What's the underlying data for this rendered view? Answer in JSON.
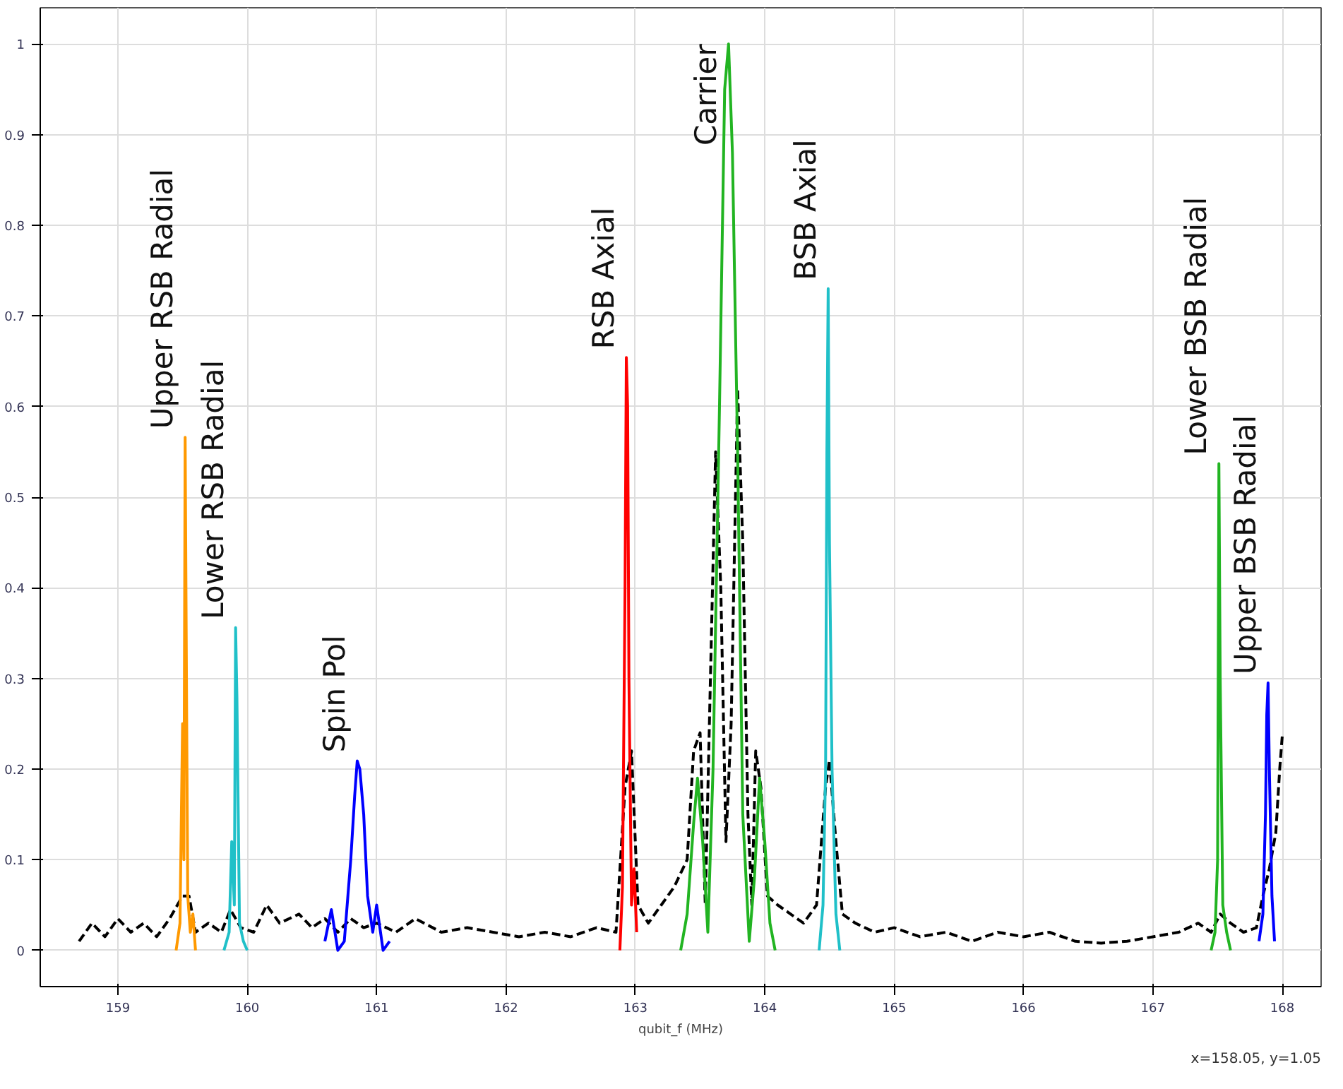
{
  "chart_data": {
    "type": "line",
    "xlabel": "qubit_f (MHz)",
    "xlim": [
      158.4,
      168.3
    ],
    "ylim": [
      -0.04,
      1.04
    ],
    "xticks": [
      159,
      160,
      161,
      162,
      163,
      164,
      165,
      166,
      167,
      168
    ],
    "yticks": [
      0,
      0.1,
      0.2,
      0.3,
      0.4,
      0.5,
      0.6,
      0.7,
      0.8,
      0.9,
      1
    ],
    "grid": true,
    "series": [
      {
        "color": "#000000",
        "line_style": "dashed",
        "x": [
          158.7,
          158.8,
          158.9,
          159.0,
          159.1,
          159.2,
          159.3,
          159.4,
          159.5,
          159.55,
          159.6,
          159.7,
          159.8,
          159.87,
          159.95,
          160.05,
          160.15,
          160.25,
          160.4,
          160.5,
          160.6,
          160.7,
          160.8,
          160.9,
          161.0,
          161.15,
          161.3,
          161.5,
          161.7,
          161.9,
          162.1,
          162.3,
          162.5,
          162.7,
          162.85,
          162.92,
          162.97,
          163.02,
          163.1,
          163.2,
          163.3,
          163.4,
          163.45,
          163.5,
          163.54,
          163.58,
          163.62,
          163.66,
          163.7,
          163.74,
          163.79,
          163.83,
          163.87,
          163.9,
          163.93,
          163.97,
          164.02,
          164.1,
          164.2,
          164.3,
          164.4,
          164.47,
          164.5,
          164.55,
          164.6,
          164.7,
          164.85,
          165.0,
          165.2,
          165.4,
          165.6,
          165.8,
          166.0,
          166.2,
          166.4,
          166.6,
          166.8,
          167.0,
          167.2,
          167.35,
          167.45,
          167.52,
          167.6,
          167.7,
          167.8,
          167.85,
          167.9,
          167.95,
          167.98,
          168.0
        ],
        "values": [
          0.01,
          0.03,
          0.015,
          0.035,
          0.02,
          0.03,
          0.015,
          0.035,
          0.06,
          0.06,
          0.02,
          0.03,
          0.02,
          0.045,
          0.025,
          0.02,
          0.05,
          0.03,
          0.04,
          0.025,
          0.035,
          0.02,
          0.035,
          0.025,
          0.03,
          0.02,
          0.035,
          0.02,
          0.025,
          0.02,
          0.015,
          0.02,
          0.015,
          0.025,
          0.02,
          0.18,
          0.22,
          0.05,
          0.03,
          0.05,
          0.07,
          0.1,
          0.22,
          0.24,
          0.05,
          0.3,
          0.55,
          0.4,
          0.12,
          0.25,
          0.62,
          0.45,
          0.15,
          0.05,
          0.22,
          0.18,
          0.06,
          0.05,
          0.04,
          0.03,
          0.05,
          0.18,
          0.21,
          0.12,
          0.04,
          0.03,
          0.02,
          0.025,
          0.015,
          0.02,
          0.01,
          0.02,
          0.015,
          0.02,
          0.01,
          0.008,
          0.01,
          0.015,
          0.02,
          0.03,
          0.02,
          0.04,
          0.03,
          0.02,
          0.025,
          0.06,
          0.09,
          0.13,
          0.2,
          0.237
        ]
      },
      {
        "color": "#ff9900",
        "x": [
          159.45,
          159.48,
          159.5,
          159.51,
          159.52,
          159.53,
          159.54,
          159.56,
          159.58,
          159.6
        ],
        "values": [
          0.0,
          0.03,
          0.25,
          0.1,
          0.566,
          0.3,
          0.06,
          0.02,
          0.04,
          0.0
        ]
      },
      {
        "color": "#20c0c8",
        "x": [
          159.82,
          159.86,
          159.88,
          159.9,
          159.91,
          159.92,
          159.94,
          159.97,
          160.0
        ],
        "values": [
          0.0,
          0.02,
          0.12,
          0.05,
          0.356,
          0.28,
          0.03,
          0.01,
          0.0
        ]
      },
      {
        "color": "#0000ff",
        "x": [
          160.6,
          160.65,
          160.7,
          160.75,
          160.8,
          160.83,
          160.85,
          160.87,
          160.9,
          160.93,
          160.97,
          161.0,
          161.05,
          161.1
        ],
        "values": [
          0.01,
          0.045,
          0.0,
          0.01,
          0.1,
          0.17,
          0.209,
          0.2,
          0.15,
          0.06,
          0.02,
          0.05,
          0.0,
          0.01
        ]
      },
      {
        "color": "#ff0000",
        "x": [
          162.88,
          162.9,
          162.92,
          162.93,
          162.94,
          162.95,
          162.97,
          162.99,
          163.01
        ],
        "values": [
          0.0,
          0.07,
          0.4,
          0.654,
          0.6,
          0.3,
          0.05,
          0.09,
          0.02
        ]
      },
      {
        "color": "#22b422",
        "x": [
          163.35,
          163.4,
          163.45,
          163.48,
          163.52,
          163.56,
          163.6,
          163.65,
          163.69,
          163.72,
          163.75,
          163.79,
          163.83,
          163.88,
          163.92,
          163.96,
          164.0,
          164.04,
          164.08
        ],
        "values": [
          0.0,
          0.04,
          0.14,
          0.19,
          0.12,
          0.02,
          0.2,
          0.6,
          0.95,
          1.0,
          0.88,
          0.55,
          0.15,
          0.01,
          0.08,
          0.19,
          0.12,
          0.03,
          0.0
        ]
      },
      {
        "color": "#20c0c8",
        "x": [
          164.42,
          164.45,
          164.47,
          164.48,
          164.49,
          164.5,
          164.52,
          164.55,
          164.58
        ],
        "values": [
          0.0,
          0.05,
          0.2,
          0.55,
          0.73,
          0.45,
          0.2,
          0.04,
          0.0
        ]
      },
      {
        "color": "#22b422",
        "x": [
          167.45,
          167.48,
          167.5,
          167.51,
          167.52,
          167.54,
          167.57,
          167.6
        ],
        "values": [
          0.0,
          0.02,
          0.1,
          0.537,
          0.3,
          0.05,
          0.02,
          0.0
        ]
      },
      {
        "color": "#0000ff",
        "x": [
          167.82,
          167.85,
          167.87,
          167.88,
          167.89,
          167.9,
          167.92,
          167.94
        ],
        "values": [
          0.01,
          0.04,
          0.15,
          0.26,
          0.295,
          0.2,
          0.06,
          0.01
        ]
      }
    ],
    "annotations": [
      {
        "text": "Upper RSB Radial",
        "x": 159.52,
        "y": 0.566
      },
      {
        "text": "Lower RSB Radial",
        "x": 159.91,
        "y": 0.356
      },
      {
        "text": "Spin Pol",
        "x": 160.85,
        "y": 0.209
      },
      {
        "text": "RSB Axial",
        "x": 162.93,
        "y": 0.654
      },
      {
        "text": "Carrier",
        "x": 163.72,
        "y": 1.0
      },
      {
        "text": "BSB Axial",
        "x": 164.49,
        "y": 0.73
      },
      {
        "text": "Lower BSB Radial",
        "x": 167.51,
        "y": 0.537
      },
      {
        "text": "Upper BSB Radial",
        "x": 167.89,
        "y": 0.295
      },
      "x=158.05, y=1.05"
    ]
  }
}
